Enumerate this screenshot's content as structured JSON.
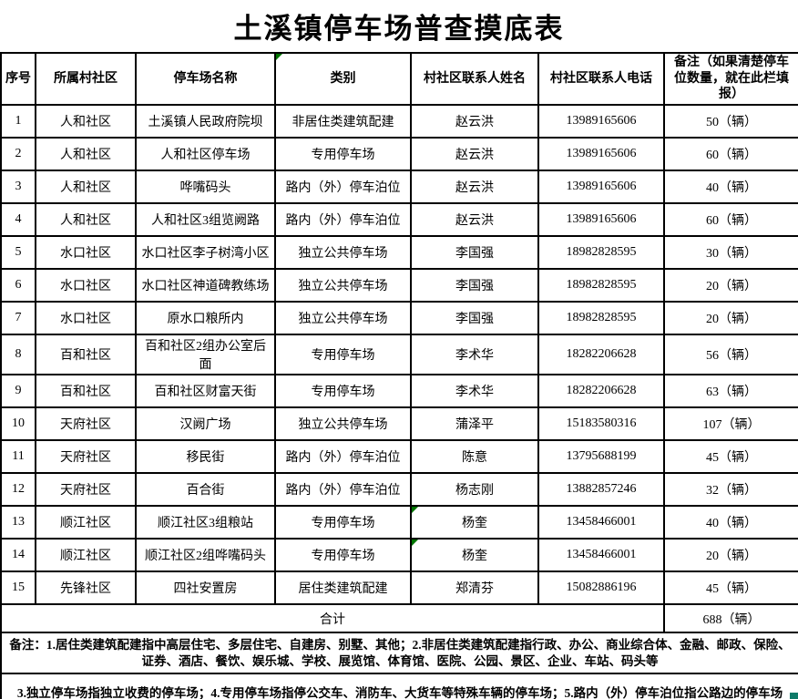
{
  "title": "土溪镇停车场普查摸底表",
  "table": {
    "headers": [
      "序号",
      "所属村社区",
      "停车场名称",
      "类别",
      "村社区联系人姓名",
      "村社区联系人电话",
      "备注（如果清楚停车位数量，就在此栏填报）"
    ],
    "rows": [
      {
        "no": "1",
        "community": "人和社区",
        "name": "土溪镇人民政府院坝",
        "category": "非居住类建筑配建",
        "contact": "赵云洪",
        "phone": "13989165606",
        "remark": "50（辆）",
        "contact_flag": false
      },
      {
        "no": "2",
        "community": "人和社区",
        "name": "人和社区停车场",
        "category": "专用停车场",
        "contact": "赵云洪",
        "phone": "13989165606",
        "remark": "60（辆）",
        "contact_flag": false
      },
      {
        "no": "3",
        "community": "人和社区",
        "name": "哗嘴码头",
        "category": "路内（外）停车泊位",
        "contact": "赵云洪",
        "phone": "13989165606",
        "remark": "40（辆）",
        "contact_flag": false
      },
      {
        "no": "4",
        "community": "人和社区",
        "name": "人和社区3组览阙路",
        "category": "路内（外）停车泊位",
        "contact": "赵云洪",
        "phone": "13989165606",
        "remark": "60（辆）",
        "contact_flag": false
      },
      {
        "no": "5",
        "community": "水口社区",
        "name": "水口社区李子树湾小区",
        "category": "独立公共停车场",
        "contact": "李国强",
        "phone": "18982828595",
        "remark": "30（辆）",
        "contact_flag": false
      },
      {
        "no": "6",
        "community": "水口社区",
        "name": "水口社区神道碑教练场",
        "category": "独立公共停车场",
        "contact": "李国强",
        "phone": "18982828595",
        "remark": "20（辆）",
        "contact_flag": false
      },
      {
        "no": "7",
        "community": "水口社区",
        "name": "原水口粮所内",
        "category": "独立公共停车场",
        "contact": "李国强",
        "phone": "18982828595",
        "remark": "20（辆）",
        "contact_flag": false
      },
      {
        "no": "8",
        "community": "百和社区",
        "name": "百和社区2组办公室后面",
        "category": "专用停车场",
        "contact": "李术华",
        "phone": "18282206628",
        "remark": "56（辆）",
        "contact_flag": false
      },
      {
        "no": "9",
        "community": "百和社区",
        "name": "百和社区财富天街",
        "category": "专用停车场",
        "contact": "李术华",
        "phone": "18282206628",
        "remark": "63（辆）",
        "contact_flag": false
      },
      {
        "no": "10",
        "community": "天府社区",
        "name": "汉阙广场",
        "category": "独立公共停车场",
        "contact": "蒲泽平",
        "phone": "15183580316",
        "remark": "107（辆）",
        "contact_flag": false
      },
      {
        "no": "11",
        "community": "天府社区",
        "name": "移民街",
        "category": "路内（外）停车泊位",
        "contact": "陈意",
        "phone": "13795688199",
        "remark": "45（辆）",
        "contact_flag": false
      },
      {
        "no": "12",
        "community": "天府社区",
        "name": "百合街",
        "category": "路内（外）停车泊位",
        "contact": "杨志刚",
        "phone": "13882857246",
        "remark": "32（辆）",
        "contact_flag": false
      },
      {
        "no": "13",
        "community": "顺江社区",
        "name": "顺江社区3组粮站",
        "category": "专用停车场",
        "contact": "杨奎",
        "phone": "13458466001",
        "remark": "40（辆）",
        "contact_flag": true
      },
      {
        "no": "14",
        "community": "顺江社区",
        "name": "顺江社区2组哗嘴码头",
        "category": "专用停车场",
        "contact": "杨奎",
        "phone": "13458466001",
        "remark": "20（辆）",
        "contact_flag": true
      },
      {
        "no": "15",
        "community": "先锋社区",
        "name": "四社安置房",
        "category": "居住类建筑配建",
        "contact": "郑清芬",
        "phone": "15082886196",
        "remark": "45（辆）",
        "contact_flag": false
      }
    ],
    "total_label": "合计",
    "total_value": "688（辆）",
    "category_header_flag": true
  },
  "notes": {
    "block1": "备注：1.居住类建筑配建指中高层住宅、多层住宅、自建房、别墅、其他；2.非居住类建筑配建指行政、办公、商业综合体、金融、邮政、保险、证券、酒店、餐饮、娱乐城、学校、展览馆、体育馆、医院、公园、景区、企业、车站、码头等",
    "block2": "3.独立停车场指独立收费的停车场；4.专用停车场指停公交车、消防车、大货车等特殊车辆的停车场；5.路内（外）停车泊位指公路边的停车场"
  },
  "colors": {
    "flag_green": "#007500",
    "corner_teal": "#0e7a68",
    "border_black": "#000000"
  }
}
